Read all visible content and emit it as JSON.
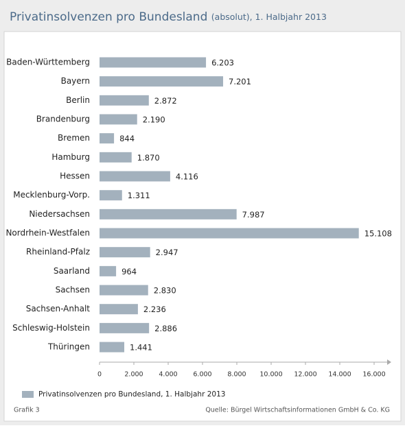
{
  "chart_data": {
    "type": "bar",
    "orientation": "horizontal",
    "title": "Privatinsolvenzen pro Bundesland",
    "subtitle": "(absolut), 1. Halbjahr 2013",
    "categories": [
      "Baden-Württemberg",
      "Bayern",
      "Berlin",
      "Brandenburg",
      "Bremen",
      "Hamburg",
      "Hessen",
      "Mecklenburg-Vorp.",
      "Niedersachsen",
      "Nordrhein-Westfalen",
      "Rheinland-Pfalz",
      "Saarland",
      "Sachsen",
      "Sachsen-Anhalt",
      "Schleswig-Holstein",
      "Thüringen"
    ],
    "series": [
      {
        "name": "Privatinsolvenzen pro Bundesland, 1. Halbjahr 2013",
        "color": "#a3b1bd",
        "values": [
          6203,
          7201,
          2872,
          2190,
          844,
          1870,
          4116,
          1311,
          7987,
          15108,
          2947,
          964,
          2830,
          2236,
          2886,
          1441
        ],
        "value_labels": [
          "6.203",
          "7.201",
          "2.872",
          "2.190",
          "844",
          "1.870",
          "4.116",
          "1.311",
          "7.987",
          "15.108",
          "2.947",
          "964",
          "2.830",
          "2.236",
          "2.886",
          "1.441"
        ]
      }
    ],
    "xlim": [
      0,
      17000
    ],
    "xticks": [
      0,
      {
        "value": 2000,
        "label": "2.000"
      },
      {
        "value": 4000,
        "label": "4.000"
      },
      {
        "value": 6000,
        "label": "6.000"
      },
      {
        "value": 8000,
        "label": "8.000"
      },
      {
        "value": 10000,
        "label": "10.000"
      },
      {
        "value": 12000,
        "label": "12.000"
      },
      {
        "value": 14000,
        "label": "14.000"
      },
      {
        "value": 16000,
        "label": "16.000"
      }
    ],
    "grid": false,
    "legend": "bottom-left",
    "note": "Grafik 3",
    "source": "Quelle: Bürgel Wirtschaftsinformationen GmbH & Co. KG"
  }
}
